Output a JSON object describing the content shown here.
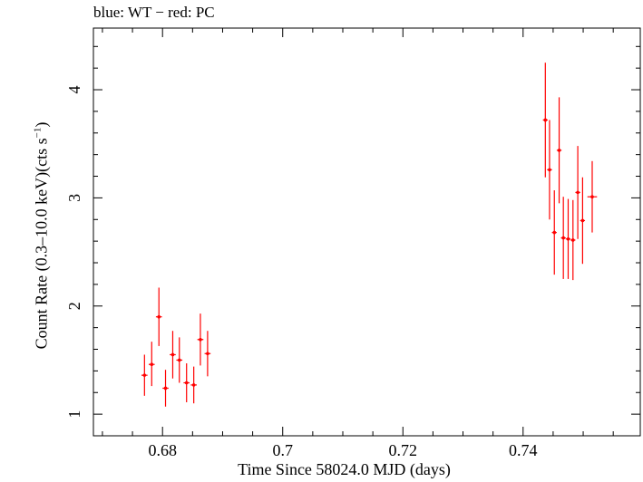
{
  "chart_data": {
    "type": "scatter",
    "title": "blue: WT − red: PC",
    "xlabel": "Time Since 58024.0 MJD (days)",
    "ylabel": {
      "prefix": "Count Rate (0.3–10.0 keV)(cts s",
      "superscript": "−1",
      "suffix": ")"
    },
    "xlim": [
      0.6685,
      0.7595
    ],
    "ylim": [
      0.8,
      4.57
    ],
    "x_ticks": [
      {
        "value": 0.68,
        "label": "0.68"
      },
      {
        "value": 0.7,
        "label": "0.7"
      },
      {
        "value": 0.72,
        "label": "0.72"
      },
      {
        "value": 0.74,
        "label": "0.74"
      }
    ],
    "y_ticks": [
      {
        "value": 1,
        "label": "1"
      },
      {
        "value": 2,
        "label": "2"
      },
      {
        "value": 3,
        "label": "3"
      },
      {
        "value": 4,
        "label": "4"
      }
    ],
    "grid": false,
    "series": [
      {
        "color": "#ff0000",
        "points": [
          {
            "x": 0.677,
            "y": 1.36,
            "yerr_lo": 0.19,
            "yerr_hi": 0.19,
            "xerr": 0.0005
          },
          {
            "x": 0.6782,
            "y": 1.46,
            "yerr_lo": 0.2,
            "yerr_hi": 0.21,
            "xerr": 0.0005
          },
          {
            "x": 0.6794,
            "y": 1.9,
            "yerr_lo": 0.27,
            "yerr_hi": 0.27,
            "xerr": 0.0005
          },
          {
            "x": 0.6805,
            "y": 1.24,
            "yerr_lo": 0.17,
            "yerr_hi": 0.17,
            "xerr": 0.0005
          },
          {
            "x": 0.6817,
            "y": 1.55,
            "yerr_lo": 0.22,
            "yerr_hi": 0.22,
            "xerr": 0.0005
          },
          {
            "x": 0.6828,
            "y": 1.5,
            "yerr_lo": 0.21,
            "yerr_hi": 0.21,
            "xerr": 0.0005
          },
          {
            "x": 0.684,
            "y": 1.29,
            "yerr_lo": 0.18,
            "yerr_hi": 0.18,
            "xerr": 0.0005
          },
          {
            "x": 0.6852,
            "y": 1.27,
            "yerr_lo": 0.17,
            "yerr_hi": 0.17,
            "xerr": 0.0005
          },
          {
            "x": 0.6863,
            "y": 1.69,
            "yerr_lo": 0.24,
            "yerr_hi": 0.24,
            "xerr": 0.0005
          },
          {
            "x": 0.6875,
            "y": 1.56,
            "yerr_lo": 0.21,
            "yerr_hi": 0.21,
            "xerr": 0.0005
          },
          {
            "x": 0.7437,
            "y": 3.72,
            "yerr_lo": 0.53,
            "yerr_hi": 0.53,
            "xerr": 0.0004
          },
          {
            "x": 0.7444,
            "y": 3.26,
            "yerr_lo": 0.46,
            "yerr_hi": 0.46,
            "xerr": 0.0004
          },
          {
            "x": 0.7452,
            "y": 2.68,
            "yerr_lo": 0.39,
            "yerr_hi": 0.39,
            "xerr": 0.0004
          },
          {
            "x": 0.746,
            "y": 3.44,
            "yerr_lo": 0.49,
            "yerr_hi": 0.49,
            "xerr": 0.0004
          },
          {
            "x": 0.7467,
            "y": 2.63,
            "yerr_lo": 0.38,
            "yerr_hi": 0.38,
            "xerr": 0.0004
          },
          {
            "x": 0.7475,
            "y": 2.62,
            "yerr_lo": 0.37,
            "yerr_hi": 0.37,
            "xerr": 0.0004
          },
          {
            "x": 0.7483,
            "y": 2.61,
            "yerr_lo": 0.37,
            "yerr_hi": 0.37,
            "xerr": 0.0004
          },
          {
            "x": 0.7491,
            "y": 3.05,
            "yerr_lo": 0.43,
            "yerr_hi": 0.43,
            "xerr": 0.0004
          },
          {
            "x": 0.7499,
            "y": 2.79,
            "yerr_lo": 0.4,
            "yerr_hi": 0.4,
            "xerr": 0.0004
          },
          {
            "x": 0.7515,
            "y": 3.01,
            "yerr_lo": 0.33,
            "yerr_hi": 0.33,
            "xerr": 0.0008
          }
        ]
      }
    ]
  }
}
